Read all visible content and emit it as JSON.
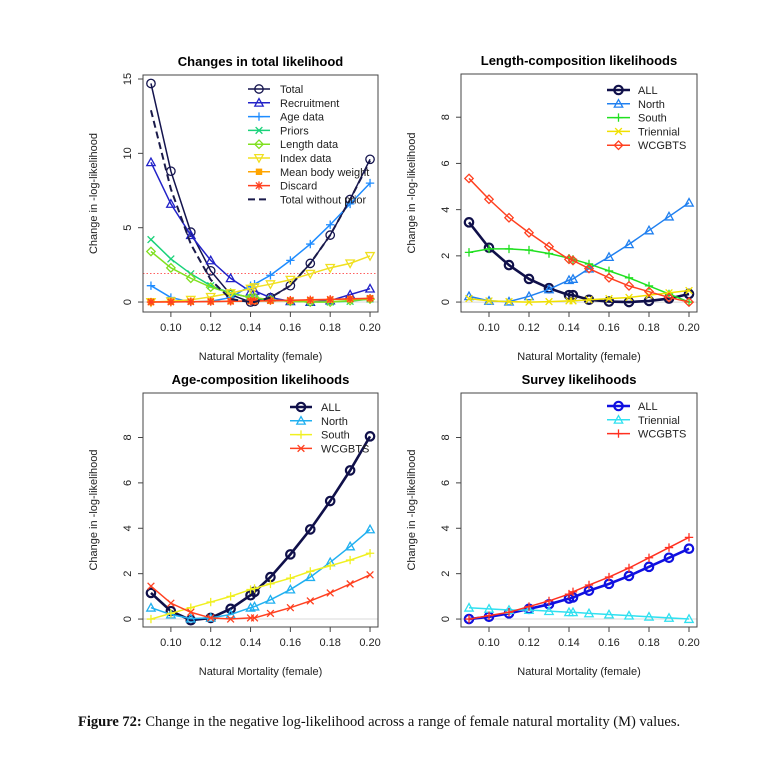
{
  "caption": {
    "label": "Figure 72:",
    "text": "Change in the negative log-likelihood across a range of female natural mortality (M) values."
  },
  "chart_data": [
    {
      "type": "line",
      "title": "Changes in total likelihood",
      "xlabel": "Natural Mortality (female)",
      "ylabel": "Change in -log-likelihood",
      "xlim": [
        0.086,
        0.204
      ],
      "ylim": [
        -0.67,
        15.27
      ],
      "xticks": [
        "0.10",
        "0.12",
        "0.14",
        "0.16",
        "0.18",
        "0.20"
      ],
      "yticks": [
        "0",
        "5",
        "10",
        "15"
      ],
      "legend": "top-right",
      "reference_line": {
        "y": 1.92,
        "color": "#ff6060",
        "style": "dotted"
      },
      "x": [
        0.09,
        0.1,
        0.11,
        0.12,
        0.13,
        0.14,
        0.142,
        0.15,
        0.16,
        0.17,
        0.18,
        0.19,
        0.2
      ],
      "series": [
        {
          "name": "Total",
          "color": "#14144e",
          "marker": "circle",
          "values": [
            14.7,
            8.8,
            4.7,
            2.1,
            0.5,
            0,
            0.05,
            0.3,
            1.1,
            2.6,
            4.5,
            6.9,
            9.6
          ]
        },
        {
          "name": "Recruitment",
          "color": "#2222c8",
          "marker": "triangle",
          "values": [
            9.4,
            6.6,
            4.5,
            2.8,
            1.6,
            0.7,
            0.75,
            0.3,
            0.05,
            0,
            0.1,
            0.5,
            0.9
          ]
        },
        {
          "name": "Age data",
          "color": "#1e8cff",
          "marker": "plus",
          "values": [
            1.1,
            0.3,
            0,
            0.05,
            0.3,
            1.1,
            1.2,
            1.8,
            2.8,
            3.9,
            5.2,
            6.6,
            8.0
          ]
        },
        {
          "name": "Priors",
          "color": "#1ad27a",
          "marker": "cross",
          "values": [
            4.2,
            2.9,
            1.9,
            1.1,
            0.6,
            0.3,
            0.25,
            0.15,
            0.05,
            0,
            0,
            0.05,
            0.2
          ]
        },
        {
          "name": "Length data",
          "color": "#80e020",
          "marker": "diamond",
          "values": [
            3.4,
            2.3,
            1.6,
            1.0,
            0.6,
            0.3,
            0.3,
            0.15,
            0.05,
            0,
            0,
            0.1,
            0.2
          ]
        },
        {
          "name": "Index data",
          "color": "#f0e020",
          "marker": "down-triangle",
          "values": [
            0,
            0.05,
            0.15,
            0.35,
            0.6,
            0.9,
            1.0,
            1.2,
            1.5,
            1.9,
            2.3,
            2.6,
            3.1
          ]
        },
        {
          "name": "Mean body weight",
          "color": "#ffa500",
          "marker": "square",
          "values": [
            0,
            0.02,
            0.03,
            0.04,
            0.05,
            0.06,
            0.06,
            0.08,
            0.1,
            0.13,
            0.16,
            0.2,
            0.25
          ]
        },
        {
          "name": "Discard",
          "color": "#ff4020",
          "marker": "asterisk",
          "values": [
            0,
            0,
            0.02,
            0.03,
            0.05,
            0.07,
            0.07,
            0.1,
            0.12,
            0.15,
            0.18,
            0.22,
            0.25
          ]
        },
        {
          "name": "Total without prior",
          "color": "#1a1a4a",
          "marker": "none",
          "dashed": true,
          "values": [
            12.9,
            7.6,
            3.9,
            1.5,
            0.2,
            0,
            0,
            0.3,
            1.1,
            2.6,
            4.5,
            6.9,
            9.5
          ]
        }
      ]
    },
    {
      "type": "line",
      "title": "Length-composition likelihoods",
      "xlabel": "Natural Mortality (female)",
      "ylabel": "Change in -log-likelihood",
      "xlim": [
        0.086,
        0.204
      ],
      "ylim": [
        -0.43,
        9.87
      ],
      "xticks": [
        "0.10",
        "0.12",
        "0.14",
        "0.16",
        "0.18",
        "0.20"
      ],
      "yticks": [
        "0",
        "2",
        "4",
        "6",
        "8"
      ],
      "legend": "top-right",
      "x": [
        0.09,
        0.1,
        0.11,
        0.12,
        0.13,
        0.14,
        0.142,
        0.15,
        0.16,
        0.17,
        0.18,
        0.19,
        0.2
      ],
      "series": [
        {
          "name": "ALL",
          "color": "#10104a",
          "marker": "circle",
          "bold": true,
          "values": [
            3.45,
            2.35,
            1.6,
            1.0,
            0.6,
            0.3,
            0.3,
            0.1,
            0.02,
            0,
            0.05,
            0.15,
            0.35
          ]
        },
        {
          "name": "North",
          "color": "#2080f0",
          "marker": "triangle",
          "values": [
            0.25,
            0.05,
            0.02,
            0.25,
            0.55,
            0.95,
            1.0,
            1.45,
            1.95,
            2.5,
            3.1,
            3.7,
            4.3
          ]
        },
        {
          "name": "South",
          "color": "#20e020",
          "marker": "plus",
          "values": [
            2.15,
            2.3,
            2.3,
            2.25,
            2.1,
            1.9,
            1.85,
            1.65,
            1.35,
            1.05,
            0.7,
            0.35,
            0.0
          ]
        },
        {
          "name": "Triennial",
          "color": "#f0e000",
          "marker": "cross",
          "values": [
            0.15,
            0.05,
            0.02,
            0.0,
            0.02,
            0.05,
            0.05,
            0.1,
            0.15,
            0.2,
            0.3,
            0.4,
            0.5
          ]
        },
        {
          "name": "WCGBTS",
          "color": "#ff4020",
          "marker": "diamond",
          "values": [
            5.35,
            4.45,
            3.65,
            3.0,
            2.4,
            1.85,
            1.8,
            1.45,
            1.05,
            0.7,
            0.45,
            0.2,
            0.0
          ]
        }
      ]
    },
    {
      "type": "line",
      "title": "Age-composition likelihoods",
      "xlabel": "Natural Mortality (female)",
      "ylabel": "Change in -log-likelihood",
      "xlim": [
        0.086,
        0.204
      ],
      "ylim": [
        -0.35,
        9.96
      ],
      "xticks": [
        "0.10",
        "0.12",
        "0.14",
        "0.16",
        "0.18",
        "0.20"
      ],
      "yticks": [
        "0",
        "2",
        "4",
        "6",
        "8"
      ],
      "legend": "top-right",
      "x": [
        0.09,
        0.1,
        0.11,
        0.12,
        0.13,
        0.14,
        0.142,
        0.15,
        0.16,
        0.17,
        0.18,
        0.19,
        0.2
      ],
      "series": [
        {
          "name": "ALL",
          "color": "#10104a",
          "marker": "circle",
          "bold": true,
          "values": [
            1.15,
            0.35,
            -0.05,
            0.05,
            0.45,
            1.05,
            1.2,
            1.85,
            2.85,
            3.95,
            5.2,
            6.55,
            8.05
          ]
        },
        {
          "name": "North",
          "color": "#20b0f0",
          "marker": "triangle",
          "values": [
            0.5,
            0.2,
            0.02,
            0.05,
            0.2,
            0.5,
            0.55,
            0.85,
            1.3,
            1.85,
            2.5,
            3.2,
            3.95
          ]
        },
        {
          "name": "South",
          "color": "#f0f020",
          "marker": "plus",
          "values": [
            0,
            0.25,
            0.5,
            0.75,
            1.0,
            1.3,
            1.35,
            1.55,
            1.8,
            2.1,
            2.35,
            2.6,
            2.9
          ]
        },
        {
          "name": "WCGBTS",
          "color": "#ff4020",
          "marker": "cross",
          "values": [
            1.45,
            0.7,
            0.3,
            0.05,
            0.0,
            0.05,
            0.05,
            0.25,
            0.5,
            0.8,
            1.15,
            1.55,
            1.95
          ]
        }
      ]
    },
    {
      "type": "line",
      "title": "Survey likelihoods",
      "xlabel": "Natural Mortality (female)",
      "ylabel": "Change in -log-likelihood",
      "xlim": [
        0.086,
        0.204
      ],
      "ylim": [
        -0.35,
        9.96
      ],
      "xticks": [
        "0.10",
        "0.12",
        "0.14",
        "0.16",
        "0.18",
        "0.20"
      ],
      "yticks": [
        "0",
        "2",
        "4",
        "6",
        "8"
      ],
      "legend": "top-right",
      "x": [
        0.09,
        0.1,
        0.11,
        0.12,
        0.13,
        0.14,
        0.142,
        0.15,
        0.16,
        0.17,
        0.18,
        0.19,
        0.2
      ],
      "series": [
        {
          "name": "ALL",
          "color": "#1010e0",
          "marker": "circle",
          "bold": true,
          "values": [
            0,
            0.1,
            0.25,
            0.45,
            0.65,
            0.9,
            0.95,
            1.25,
            1.55,
            1.9,
            2.3,
            2.7,
            3.1
          ]
        },
        {
          "name": "Triennial",
          "color": "#30e0f0",
          "marker": "triangle",
          "values": [
            0.5,
            0.45,
            0.4,
            0.4,
            0.35,
            0.3,
            0.3,
            0.25,
            0.2,
            0.15,
            0.1,
            0.05,
            0.0
          ]
        },
        {
          "name": "WCGBTS",
          "color": "#ff3020",
          "marker": "plus",
          "values": [
            0,
            0.15,
            0.3,
            0.55,
            0.8,
            1.1,
            1.2,
            1.5,
            1.85,
            2.25,
            2.7,
            3.15,
            3.6
          ]
        }
      ]
    }
  ]
}
